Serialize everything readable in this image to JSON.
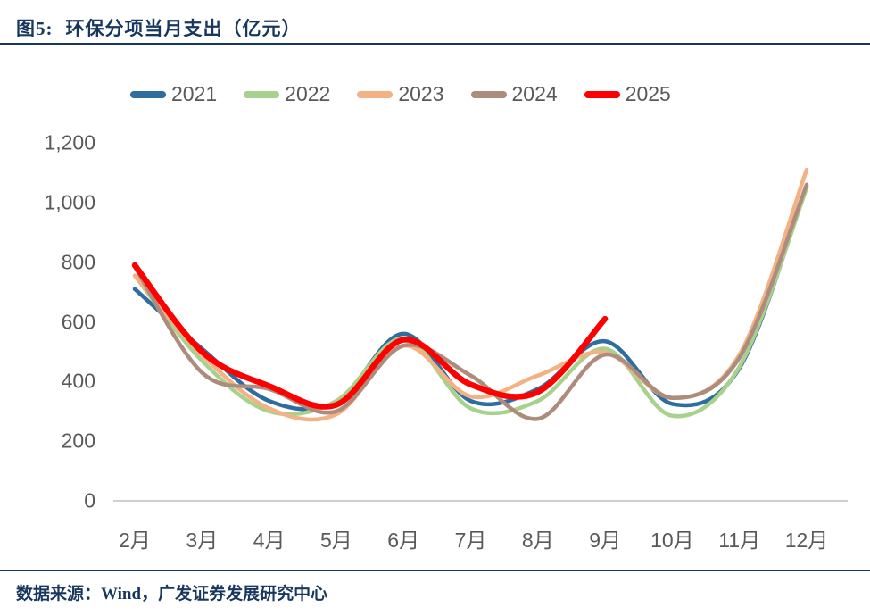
{
  "header": {
    "fig_label": "图5:",
    "title": "环保分项当月支出（亿元）"
  },
  "footer": {
    "source": "数据来源：Wind，广发证券发展研究中心"
  },
  "colors": {
    "title_navy": "#17375E",
    "axis_text": "#595959",
    "axis_line": "#CFCFCF"
  },
  "chart_data": {
    "type": "line",
    "title": "环保分项当月支出（亿元）",
    "legend_position": "top",
    "grid": false,
    "smooth": true,
    "categories": [
      "2月",
      "3月",
      "4月",
      "5月",
      "6月",
      "7月",
      "8月",
      "9月",
      "10月",
      "11月",
      "12月"
    ],
    "ylim": [
      0,
      1200
    ],
    "y_ticks": [
      {
        "value": 1200,
        "label": "1,200"
      },
      {
        "value": 1000,
        "label": "1,000"
      },
      {
        "value": 800,
        "label": "800"
      },
      {
        "value": 600,
        "label": "600"
      },
      {
        "value": 400,
        "label": "400"
      },
      {
        "value": 200,
        "label": "200"
      },
      {
        "value": 0,
        "label": "0"
      }
    ],
    "series": [
      {
        "name": "2021",
        "color": "#2E6D9F",
        "width": 4.5,
        "values": [
          710,
          510,
          335,
          330,
          560,
          335,
          375,
          535,
          325,
          445,
          1055
        ]
      },
      {
        "name": "2022",
        "color": "#A9D18E",
        "width": 4.5,
        "values": [
          755,
          470,
          300,
          335,
          545,
          310,
          335,
          510,
          285,
          450,
          1048
        ]
      },
      {
        "name": "2023",
        "color": "#F4B183",
        "width": 4.5,
        "values": [
          755,
          490,
          310,
          290,
          520,
          350,
          420,
          497,
          345,
          490,
          1110
        ]
      },
      {
        "name": "2024",
        "color": "#AD8C7D",
        "width": 4.5,
        "values": [
          785,
          430,
          375,
          300,
          520,
          420,
          275,
          490,
          345,
          480,
          1060
        ]
      },
      {
        "name": "2025",
        "color": "#FF0000",
        "width": 6.5,
        "values": [
          790,
          500,
          385,
          322,
          540,
          390,
          365,
          610
        ]
      }
    ]
  },
  "layout": {
    "x_start": 151,
    "x_step": 75.3,
    "y_base": 561,
    "y_top": 160
  }
}
